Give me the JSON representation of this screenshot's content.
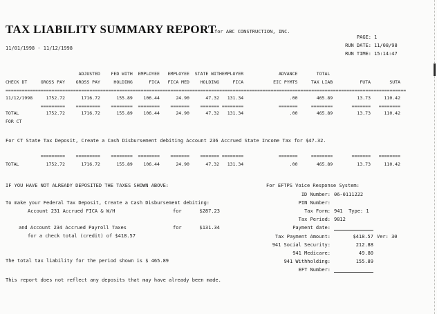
{
  "header": {
    "title": "TAX LIABILITY SUMMARY REPORT",
    "subtitle": "for ABC CONSTRUCTION, INC.",
    "date_range": "11/01/1998 - 11/12/1998",
    "meta": [
      {
        "label": "PAGE:",
        "value": "1"
      },
      {
        "label": "RUN DATE:",
        "value": "11/08/98"
      },
      {
        "label": "RUN TIME:",
        "value": "15:14:47"
      }
    ]
  },
  "table": {
    "columns": [
      {
        "h1": "",
        "h2": "CHECK DT"
      },
      {
        "h1": "",
        "h2": "GROSS PAY"
      },
      {
        "h1": "ADJUSTED",
        "h2": "GROSS PAY"
      },
      {
        "h1": "FED WITH",
        "h2": "HOLDING"
      },
      {
        "h1": "EMPLOYEE",
        "h2": "FICA"
      },
      {
        "h1": "EMPLOYEE",
        "h2": "FICA MED"
      },
      {
        "h1": "STATE WITH",
        "h2": "HOLDING"
      },
      {
        "h1": "EMPLOYER",
        "h2": "FICA"
      },
      {
        "h1": "ADVANCE",
        "h2": "EIC PYMTS"
      },
      {
        "h1": "TOTAL",
        "h2": "TAX LIAB"
      },
      {
        "h1": "",
        "h2": "FUTA"
      },
      {
        "h1": "",
        "h2": "SUTA"
      }
    ],
    "rows": [
      {
        "label": "11/12/1998",
        "sublabel": "",
        "values": [
          "1752.72",
          "1716.72",
          "155.89",
          "106.44",
          "24.90",
          "47.32",
          "131.34",
          ".00",
          "465.89",
          "13.73",
          "110.42"
        ],
        "sep_below": true
      },
      {
        "label": "TOTAL",
        "sublabel": "FOR CT",
        "values": [
          "1752.72",
          "1716.72",
          "155.89",
          "106.44",
          "24.90",
          "47.32",
          "131.34",
          ".00",
          "465.89",
          "13.73",
          "110.42"
        ],
        "sep_below": false
      },
      {
        "label": "TOTAL",
        "sublabel": "",
        "values": [
          "1752.72",
          "1716.72",
          "155.89",
          "106.44",
          "24.90",
          "47.32",
          "131.34",
          ".00",
          "465.89",
          "13.73",
          "110.42"
        ],
        "sep_above": true
      }
    ]
  },
  "ct_note": "For CT State Tax Deposit, Create a Cash Disbursement debiting Account 236 Accrued State Income Tax for $47.32.",
  "deposit": {
    "warning": "IF YOU HAVE NOT ALREADY DEPOSITED THE TAXES SHOWN ABOVE:",
    "intro": "To make your Federal Tax Deposit, Create a Cash Disbursement debiting:",
    "line1_text": "Account 231 Accrued FICA & W/H",
    "line1_for": "for",
    "line1_amount": "$287.23",
    "line2_text": "and Account 234 Accrued Payroll Taxes",
    "line2_for": "for",
    "line2_amount": "$131.34",
    "line3_text": "for a check total (credit) of $418.57",
    "summary": "The total tax liability for the period shown is $ 465.89",
    "footer": "This report does not reflect any deposits that may have already been made."
  },
  "eftps": {
    "title": "For EFTPS Voice Response System:",
    "rows": [
      {
        "label": "ID Number:",
        "value": "06-0111222"
      },
      {
        "label": "PIN Number:",
        "value": ""
      },
      {
        "label": "Tax Form:",
        "value": "941  Type: 1"
      },
      {
        "label": "Tax Period:",
        "value": "9812"
      },
      {
        "label": "Payment date:",
        "value": "",
        "underline": true
      },
      {
        "label": "Tax Payment Amount:",
        "amount": "$418.57",
        "suffix": "Ver: 30"
      },
      {
        "label": "941 Social Security:",
        "amount": "212.88"
      },
      {
        "label": "941 Medicare:",
        "amount": "49.80"
      },
      {
        "label": "941 Withholding:",
        "amount": "155.89"
      },
      {
        "label": "EFT Number:",
        "value": "",
        "underline": true
      }
    ]
  },
  "colors": {
    "ink": "#1c1c1c",
    "paper": "#fbfbfa"
  }
}
